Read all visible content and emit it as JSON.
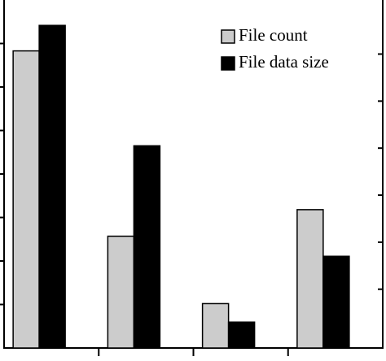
{
  "chart_data": {
    "type": "bar",
    "categories": [
      null,
      null,
      null,
      null
    ],
    "series": [
      {
        "name": "File count",
        "color": "#cccccc",
        "values": [
          6.83,
          2.57,
          1.02,
          3.18
        ]
      },
      {
        "name": "File data size",
        "color": "#000000",
        "axis": "y2",
        "values": [
          6.86,
          4.3,
          0.55,
          1.95
        ]
      }
    ],
    "ylim": [
      0,
      8
    ],
    "yticks": [
      1,
      2,
      3,
      4,
      5,
      6,
      7
    ],
    "y2lim": [
      0,
      7.4
    ],
    "y2ticks": [
      1.25,
      2.25,
      3.25,
      4.25,
      5.25,
      6.25
    ],
    "legend": "top-right"
  }
}
